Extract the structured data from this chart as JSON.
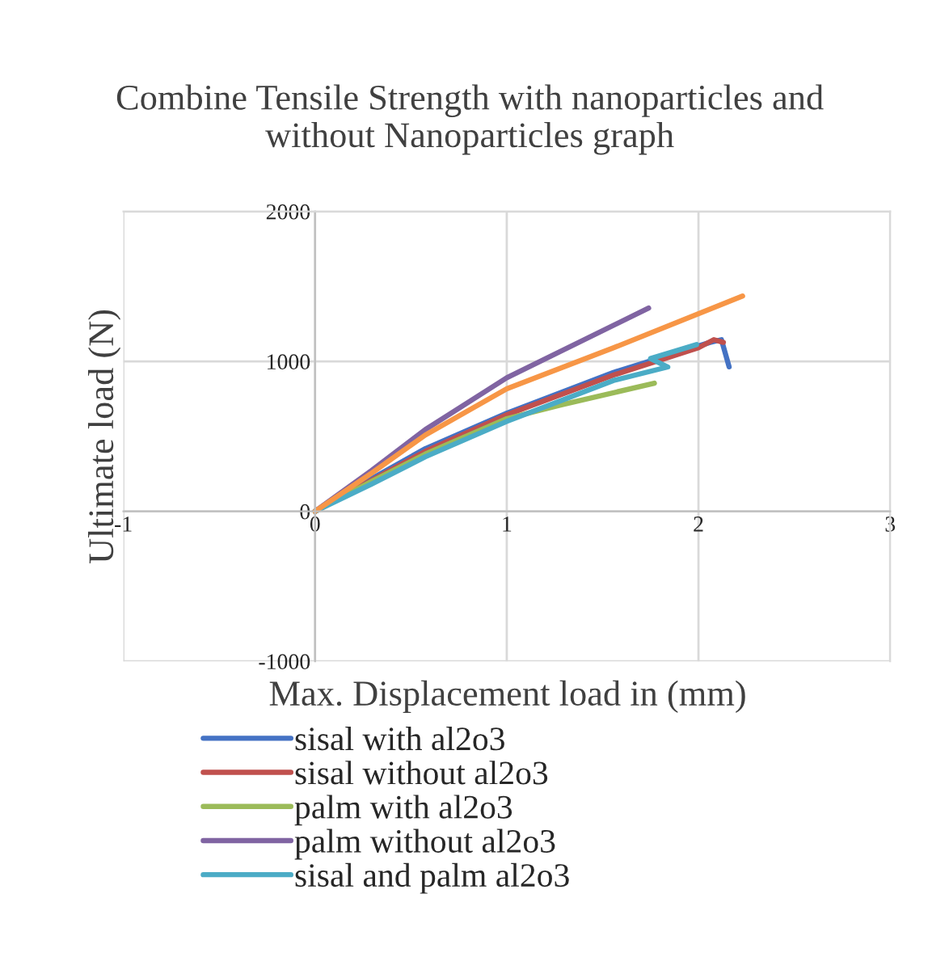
{
  "chart_data": {
    "type": "line",
    "title": "Combine Tensile Strength with nanoparticles and without Nanoparticles graph",
    "xlabel": "Max. Displacement load in (mm)",
    "ylabel": "Ultimate load (N)",
    "xlim": [
      -1,
      3
    ],
    "xticks": [
      -1,
      0,
      1,
      2,
      3
    ],
    "ylim": [
      -1000,
      2000
    ],
    "yticks": [
      -1000,
      0,
      1000,
      2000
    ],
    "grid": true,
    "legend": "bottom",
    "marker": "none",
    "line_style": "solid",
    "series": [
      {
        "name": "sisal with al2o3",
        "color": "#4472c4",
        "x": [
          0,
          0.295,
          0.575,
          1.0,
          1.557,
          2.06,
          2.12,
          2.16
        ],
        "values": [
          0,
          218,
          418,
          655,
          927,
          1127,
          1145,
          964
        ]
      },
      {
        "name": "sisal without al2o3",
        "color": "#c0504d",
        "x": [
          0,
          0.295,
          0.575,
          1.0,
          1.557,
          2.0,
          2.08,
          2.13
        ],
        "values": [
          0,
          207,
          400,
          644,
          909,
          1091,
          1145,
          1127
        ]
      },
      {
        "name": "palm with al2o3",
        "color": "#9bbb59",
        "x": [
          0,
          0.295,
          0.575,
          1.0,
          1.28,
          1.77
        ],
        "values": [
          0,
          200,
          382,
          618,
          709,
          855
        ]
      },
      {
        "name": "palm without al2o3",
        "color": "#8064a2",
        "x": [
          0,
          0.295,
          0.575,
          1.0,
          1.74
        ],
        "values": [
          0,
          273,
          545,
          891,
          1356
        ]
      },
      {
        "name": "sisal and palm al2o3",
        "color": "#4bacc6",
        "x": [
          0,
          0.295,
          0.575,
          1.0,
          1.557,
          1.84,
          1.75,
          1.99
        ],
        "values": [
          0,
          182,
          364,
          600,
          873,
          963,
          1019,
          1112
        ]
      },
      {
        "color": "#f79646",
        "x": [
          0,
          0.295,
          0.575,
          1.0,
          1.557,
          2.23
        ],
        "values": [
          0,
          255,
          509,
          818,
          1091,
          1436
        ]
      }
    ]
  }
}
